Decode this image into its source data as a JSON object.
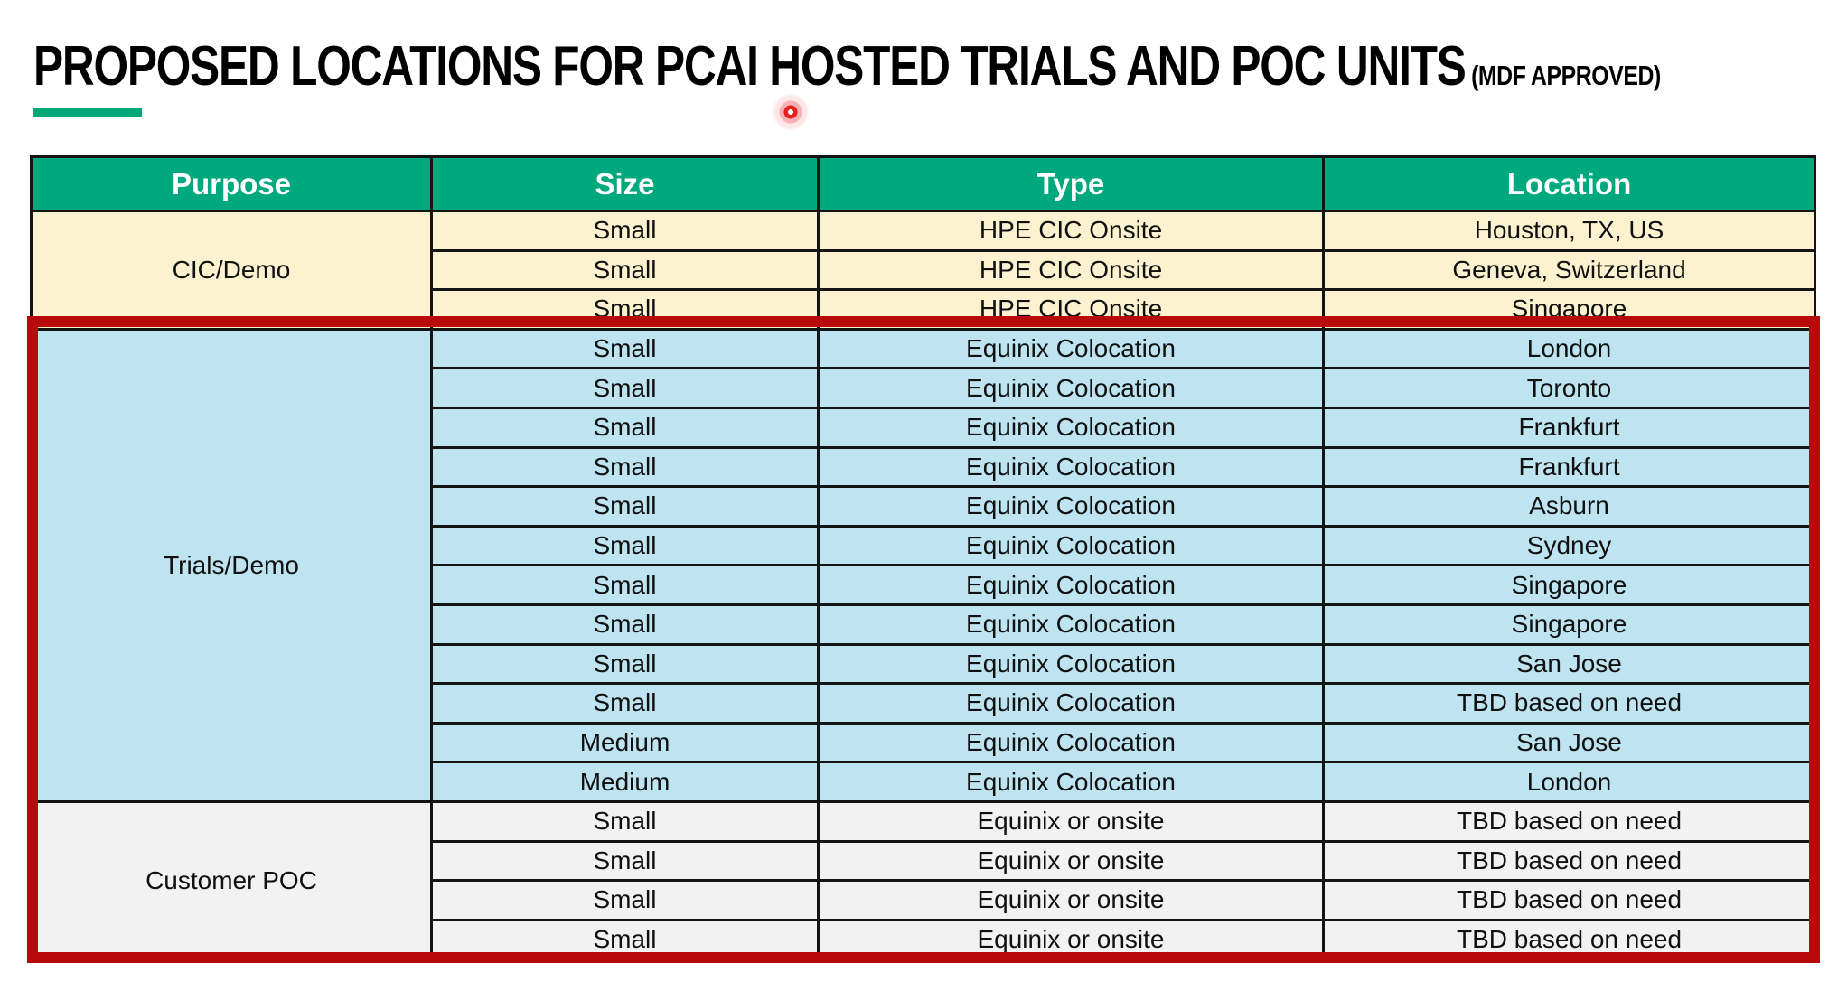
{
  "title": {
    "main": "PROPOSED LOCATIONS FOR PCAI HOSTED TRIALS AND POC UNITS",
    "suffix": "(MDF APPROVED)"
  },
  "colors": {
    "header_green": "#00A87E",
    "accent_green": "#00A878",
    "cic_demo_bg": "#FCF2CF",
    "trials_demo_bg": "#BDE4F0",
    "customer_poc_bg": "#F2F2F2",
    "highlight_red": "#B80A0A",
    "laser_red": "#E51F1F"
  },
  "table": {
    "headers": [
      "Purpose",
      "Size",
      "Type",
      "Location"
    ],
    "sections": [
      {
        "purpose": "CIC/Demo",
        "bg": "#FCF2CF",
        "rows": [
          [
            "Small",
            "HPE CIC Onsite",
            "Houston, TX, US"
          ],
          [
            "Small",
            "HPE CIC Onsite",
            "Geneva, Switzerland"
          ],
          [
            "Small",
            "HPE CIC Onsite",
            "Singapore"
          ]
        ]
      },
      {
        "purpose": "Trials/Demo",
        "bg": "#BDE4F0",
        "rows": [
          [
            "Small",
            "Equinix Colocation",
            "London"
          ],
          [
            "Small",
            "Equinix Colocation",
            "Toronto"
          ],
          [
            "Small",
            "Equinix Colocation",
            "Frankfurt"
          ],
          [
            "Small",
            "Equinix Colocation",
            "Frankfurt"
          ],
          [
            "Small",
            "Equinix Colocation",
            "Asburn"
          ],
          [
            "Small",
            "Equinix Colocation",
            "Sydney"
          ],
          [
            "Small",
            "Equinix Colocation",
            "Singapore"
          ],
          [
            "Small",
            "Equinix Colocation",
            "Singapore"
          ],
          [
            "Small",
            "Equinix Colocation",
            "San Jose"
          ],
          [
            "Small",
            "Equinix Colocation",
            "TBD based on need"
          ],
          [
            "Medium",
            "Equinix Colocation",
            "San Jose"
          ],
          [
            "Medium",
            "Equinix Colocation",
            "London"
          ]
        ]
      },
      {
        "purpose": "Customer POC",
        "bg": "#F2F2F2",
        "rows": [
          [
            "Small",
            "Equinix or onsite",
            "TBD based on need"
          ],
          [
            "Small",
            "Equinix or onsite",
            "TBD based on need"
          ],
          [
            "Small",
            "Equinix or onsite",
            "TBD based on need"
          ],
          [
            "Small",
            "Equinix or onsite",
            "TBD based on need"
          ]
        ]
      }
    ]
  }
}
